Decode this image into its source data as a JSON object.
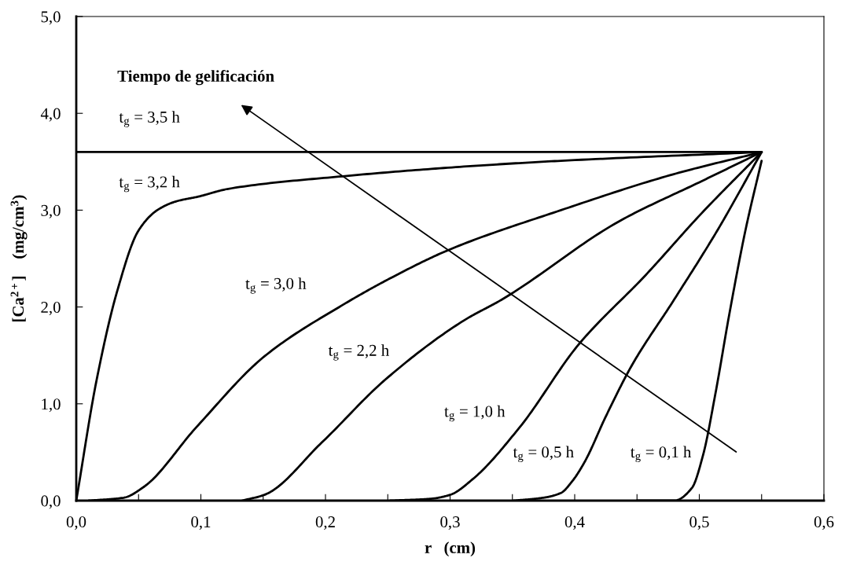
{
  "chart_data": {
    "type": "line",
    "xlabel": "r   (cm)",
    "ylabel": "[Ca$^{2+}$]    (mg/cm$^{3}$)",
    "xlim": [
      0,
      0.6
    ],
    "ylim": [
      0,
      5
    ],
    "xticks": [
      {
        "value": 0,
        "label": "0,0"
      },
      {
        "value": 0.05,
        "label": null
      },
      {
        "value": 0.1,
        "label": "0,1"
      },
      {
        "value": 0.15,
        "label": null
      },
      {
        "value": 0.2,
        "label": "0,2"
      },
      {
        "value": 0.25,
        "label": null
      },
      {
        "value": 0.3,
        "label": "0,3"
      },
      {
        "value": 0.35,
        "label": null
      },
      {
        "value": 0.4,
        "label": "0,4"
      },
      {
        "value": 0.45,
        "label": null
      },
      {
        "value": 0.5,
        "label": "0,5"
      },
      {
        "value": 0.55,
        "label": null
      },
      {
        "value": 0.6,
        "label": "0,6"
      }
    ],
    "yticks": [
      {
        "value": 0,
        "label": "0,0"
      },
      {
        "value": 1,
        "label": "1,0"
      },
      {
        "value": 2,
        "label": "2,0"
      },
      {
        "value": 3,
        "label": "3,0"
      },
      {
        "value": 4,
        "label": "4,0"
      },
      {
        "value": 5,
        "label": "5,0"
      }
    ],
    "grid": false,
    "legend": false,
    "marker": "none",
    "line_style": "solid",
    "series": [
      {
        "color": "#000000",
        "x": [
          0,
          0.55
        ],
        "values": [
          3.6,
          3.6
        ]
      },
      {
        "color": "#000000",
        "x": [
          0,
          0.0164,
          0.033,
          0.05,
          0.065,
          0.08,
          0.098,
          0.122,
          0.214,
          0.311,
          0.389,
          0.55
        ],
        "values": [
          0,
          1.25,
          2.17,
          2.79,
          3.0,
          3.09,
          3.14,
          3.22,
          3.35,
          3.45,
          3.51,
          3.6
        ]
      },
      {
        "color": "#000000",
        "x": [
          0.01,
          0.038,
          0.054,
          0.0965,
          0.151,
          0.215,
          0.254,
          0.299,
          0.389,
          0.479,
          0.55
        ],
        "values": [
          0,
          0.03,
          0.14,
          0.76,
          1.49,
          2.03,
          2.31,
          2.59,
          3.0,
          3.37,
          3.6
        ]
      },
      {
        "color": "#000000",
        "x": [
          0.133,
          0.151,
          0.197,
          0.248,
          0.311,
          0.342,
          0.435,
          0.502,
          0.55
        ],
        "values": [
          0,
          0.06,
          0.6,
          1.25,
          1.86,
          2.08,
          2.88,
          3.3,
          3.6
        ]
      },
      {
        "color": "#000000",
        "x": [
          0.252,
          0.285,
          0.3,
          0.318,
          0.356,
          0.403,
          0.457,
          0.502,
          0.55
        ],
        "values": [
          0,
          0.02,
          0.06,
          0.22,
          0.76,
          1.61,
          2.33,
          2.97,
          3.6
        ]
      },
      {
        "color": "#000000",
        "x": [
          0.351,
          0.375,
          0.389,
          0.398,
          0.408,
          0.425,
          0.446,
          0.479,
          0.514,
          0.55
        ],
        "values": [
          0,
          0.03,
          0.08,
          0.2,
          0.4,
          0.87,
          1.4,
          2.06,
          2.78,
          3.6
        ]
      },
      {
        "color": "#000000",
        "x": [
          0.45,
          0.48,
          0.494,
          0.503,
          0.513,
          0.524,
          0.537,
          0.55
        ],
        "values": [
          0,
          0,
          0.13,
          0.47,
          1.11,
          1.92,
          2.79,
          3.51
        ]
      }
    ],
    "annotations": [
      "Tiempo de gelificación",
      "t$_{g}$ = 3,5 h",
      "t$_{g}$ = 3,2 h",
      "t$_{g}$ = 3,0 h",
      "t$_{g}$ = 2,2 h",
      "t$_{g}$ = 1,0 h",
      "t$_{g}$ = 0,5 h",
      "t$_{g}$ = 0,1 h"
    ]
  }
}
